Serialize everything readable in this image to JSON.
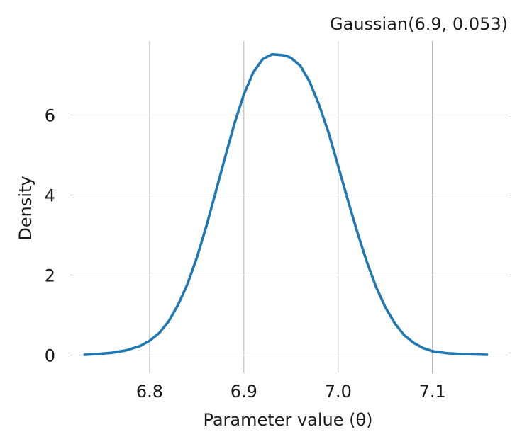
{
  "chart_data": {
    "type": "line",
    "title": "Gaussian(6.9, 0.053)",
    "xlabel": "Parameter value (θ)",
    "ylabel": "Density",
    "xlim": [
      6.715,
      7.18
    ],
    "ylim": [
      -0.45,
      7.85
    ],
    "xticks": [
      6.8,
      6.9,
      7.0,
      7.1
    ],
    "xtick_labels": [
      "6.8",
      "6.9",
      "7.0",
      "7.1"
    ],
    "yticks": [
      0,
      2,
      4,
      6
    ],
    "ytick_labels": [
      "0",
      "2",
      "4",
      "6"
    ],
    "grid": true,
    "line_color": "#1f77b4",
    "series": [
      {
        "x": [
          6.731,
          6.745,
          6.76,
          6.775,
          6.79,
          6.8,
          6.81,
          6.82,
          6.83,
          6.84,
          6.85,
          6.86,
          6.87,
          6.88,
          6.89,
          6.9,
          6.91,
          6.92,
          6.93,
          6.94,
          6.945,
          6.95,
          6.96,
          6.97,
          6.98,
          6.99,
          7.0,
          7.01,
          7.02,
          7.03,
          7.04,
          7.05,
          7.06,
          7.07,
          7.08,
          7.09,
          7.1,
          7.115,
          7.13,
          7.145,
          7.158
        ],
        "y": [
          0.01,
          0.03,
          0.06,
          0.12,
          0.23,
          0.36,
          0.55,
          0.84,
          1.25,
          1.77,
          2.43,
          3.21,
          4.07,
          4.94,
          5.79,
          6.52,
          7.07,
          7.4,
          7.52,
          7.5,
          7.48,
          7.43,
          7.23,
          6.82,
          6.24,
          5.55,
          4.73,
          3.9,
          3.1,
          2.36,
          1.72,
          1.2,
          0.8,
          0.5,
          0.31,
          0.18,
          0.1,
          0.05,
          0.03,
          0.02,
          0.01
        ]
      }
    ]
  }
}
